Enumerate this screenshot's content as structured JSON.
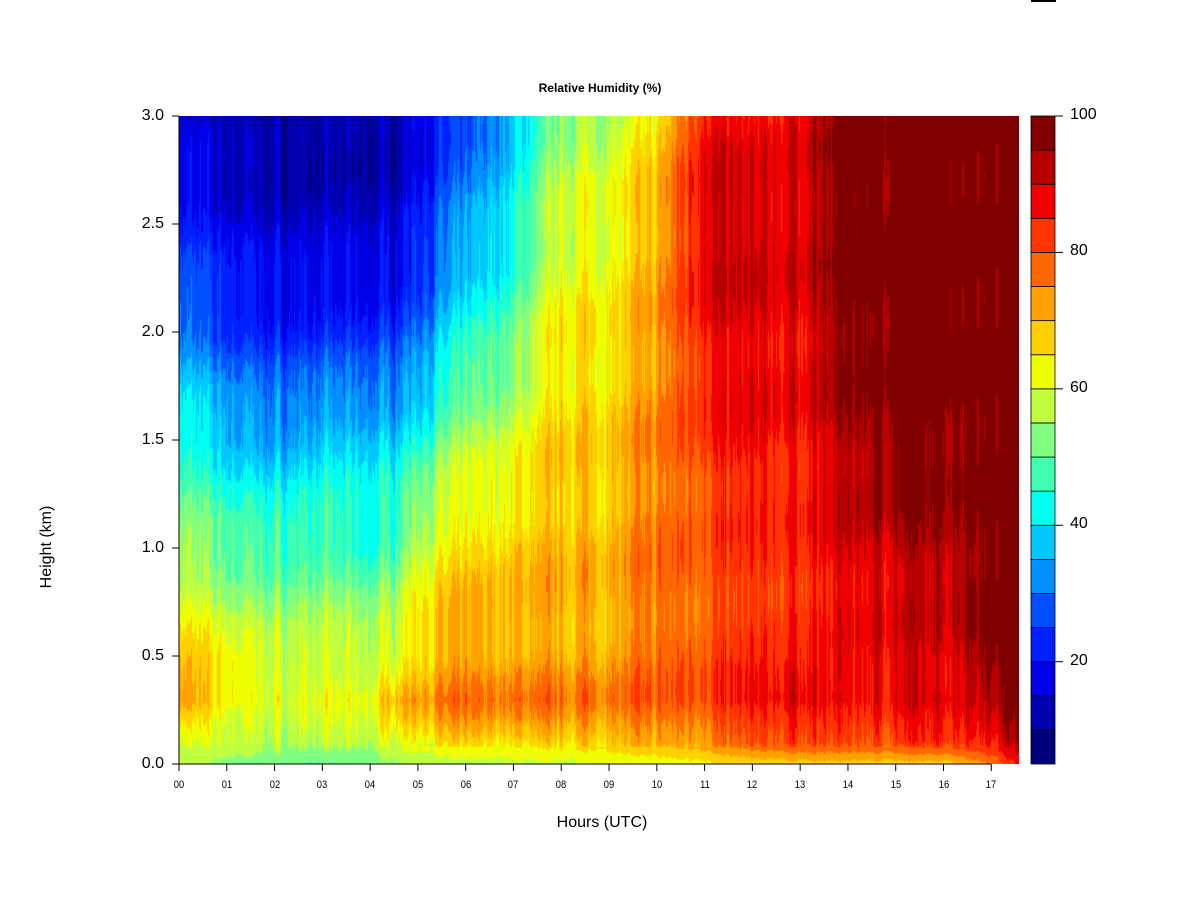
{
  "chart_data": {
    "type": "heatmap",
    "title": "Relative Humidity (%)",
    "xlabel": "Hours (UTC)",
    "ylabel": "Height (km)",
    "xlim": [
      0,
      17.58
    ],
    "ylim": [
      0,
      3.0
    ],
    "x_tick_labels": [
      "00",
      "01",
      "02",
      "03",
      "04",
      "05",
      "06",
      "07",
      "08",
      "09",
      "10",
      "11",
      "12",
      "13",
      "14",
      "15",
      "16",
      "17"
    ],
    "y_tick_labels": [
      "0.0",
      "0.5",
      "1.0",
      "1.5",
      "2.0",
      "2.5",
      "3.0"
    ],
    "colorbar": {
      "range": [
        5,
        100
      ],
      "level_step": 5,
      "tick_labels": [
        "20",
        "40",
        "60",
        "80",
        "100"
      ],
      "colors": [
        "#00007F",
        "#0000B0",
        "#0000E8",
        "#0020FF",
        "#0050FF",
        "#0090FF",
        "#00C8FF",
        "#00FFF0",
        "#40FFB0",
        "#80FF80",
        "#C0FF40",
        "#F0FF00",
        "#FFD000",
        "#FFA000",
        "#FF6800",
        "#FF3400",
        "#F00000",
        "#B80000",
        "#800000"
      ]
    },
    "grid_hours": [
      0,
      1,
      2,
      3,
      4,
      4.5,
      5,
      6,
      7,
      8,
      9,
      10,
      11,
      12,
      13,
      14,
      15,
      16,
      17,
      17.5
    ],
    "grid_heights_km": [
      0.0,
      0.1,
      0.3,
      0.5,
      1.0,
      1.5,
      2.0,
      2.5,
      3.0
    ],
    "values_rh_percent": [
      [
        55,
        60,
        75,
        68,
        55,
        45,
        32,
        22,
        15
      ],
      [
        52,
        58,
        65,
        62,
        50,
        38,
        25,
        18,
        12
      ],
      [
        50,
        55,
        62,
        58,
        48,
        35,
        22,
        15,
        10
      ],
      [
        48,
        55,
        62,
        58,
        48,
        38,
        22,
        14,
        10
      ],
      [
        50,
        55,
        62,
        58,
        45,
        38,
        22,
        14,
        10
      ],
      [
        55,
        60,
        72,
        62,
        50,
        40,
        25,
        16,
        12
      ],
      [
        56,
        62,
        74,
        68,
        60,
        45,
        30,
        22,
        18
      ],
      [
        58,
        65,
        76,
        72,
        65,
        55,
        42,
        32,
        25
      ],
      [
        60,
        66,
        76,
        72,
        68,
        60,
        50,
        42,
        38
      ],
      [
        60,
        68,
        76,
        72,
        70,
        68,
        65,
        60,
        55
      ],
      [
        62,
        70,
        76,
        72,
        70,
        68,
        65,
        62,
        58
      ],
      [
        62,
        72,
        78,
        76,
        76,
        74,
        72,
        70,
        65
      ],
      [
        64,
        76,
        82,
        80,
        80,
        84,
        88,
        92,
        88
      ],
      [
        65,
        80,
        86,
        82,
        82,
        86,
        88,
        90,
        85
      ],
      [
        66,
        82,
        90,
        84,
        84,
        86,
        88,
        90,
        88
      ],
      [
        66,
        80,
        88,
        86,
        90,
        94,
        98,
        100,
        100
      ],
      [
        66,
        80,
        90,
        88,
        92,
        98,
        100,
        100,
        98
      ],
      [
        66,
        82,
        90,
        88,
        94,
        98,
        100,
        100,
        100
      ],
      [
        75,
        85,
        95,
        100,
        100,
        100,
        100,
        100,
        100
      ],
      [
        85,
        92,
        100,
        100,
        100,
        100,
        100,
        100,
        100
      ]
    ]
  }
}
